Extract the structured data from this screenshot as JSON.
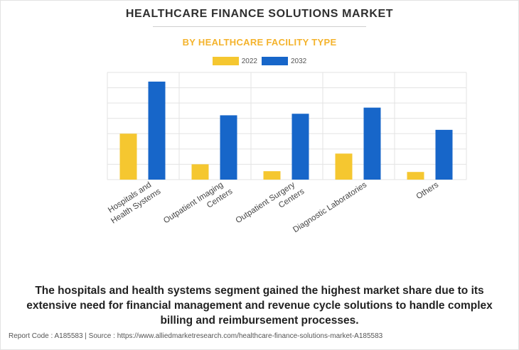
{
  "title": "HEALTHCARE FINANCE SOLUTIONS MARKET",
  "subtitle": "BY HEALTHCARE FACILITY TYPE",
  "caption": "The hospitals and health systems segment gained the highest market share due to its extensive need for financial management and revenue cycle solutions to handle complex billing and reimbursement processes.",
  "footer": "Report Code : A185583  |  Source : https://www.alliedmarketresearch.com/healthcare-finance-solutions-market-A185583",
  "colors": {
    "series_2022": "#f5c730",
    "series_2032": "#1766c9",
    "grid": "#e3e3e3"
  },
  "chart_data": {
    "type": "bar",
    "categories": [
      [
        "Hospitals and",
        "Health Systems"
      ],
      [
        "Outpatient Imaging",
        "Centers"
      ],
      [
        "Outpatient Surgery",
        "Centers"
      ],
      [
        "Diagnostic Laboratories"
      ],
      [
        "Others"
      ]
    ],
    "series": [
      {
        "name": "2022",
        "values": [
          3.0,
          1.0,
          0.55,
          1.7,
          0.5
        ]
      },
      {
        "name": "2032",
        "values": [
          6.4,
          4.2,
          4.3,
          4.7,
          3.25
        ]
      }
    ],
    "ylim": [
      0,
      7
    ],
    "grid": true,
    "legend": "top-center",
    "xlabel": "",
    "ylabel": ""
  }
}
